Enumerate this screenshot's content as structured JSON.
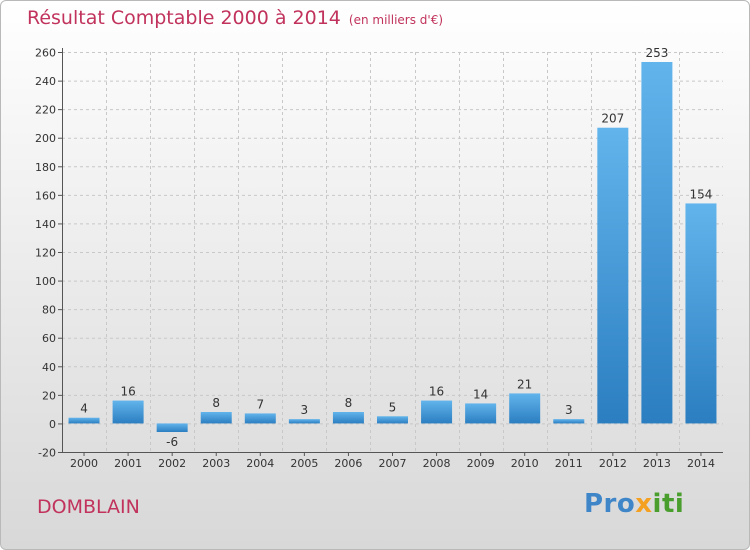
{
  "chart_data": {
    "type": "bar",
    "title": "Résultat Comptable 2000 à 2014",
    "unit_label": "(en milliers d'€)",
    "categories": [
      "2000",
      "2001",
      "2002",
      "2003",
      "2004",
      "2005",
      "2006",
      "2007",
      "2008",
      "2009",
      "2010",
      "2011",
      "2012",
      "2013",
      "2014"
    ],
    "values": [
      4,
      16,
      -6,
      8,
      7,
      3,
      8,
      5,
      16,
      14,
      21,
      3,
      207,
      253,
      154
    ],
    "ylim": [
      -20,
      260
    ],
    "yticks": [
      -20,
      0,
      20,
      40,
      60,
      80,
      100,
      120,
      140,
      160,
      180,
      200,
      220,
      240,
      260
    ],
    "grid": true,
    "xlabel": "",
    "ylabel": ""
  },
  "location": "DOMBLAIN",
  "brand": {
    "prefix": "Pro",
    "x": "x",
    "suffix": "iti"
  },
  "colors": {
    "title": "#c1335c",
    "bar_light": "#62b4ec",
    "bar_dark": "#2b7ec0",
    "grid": "#c8c8c8"
  }
}
